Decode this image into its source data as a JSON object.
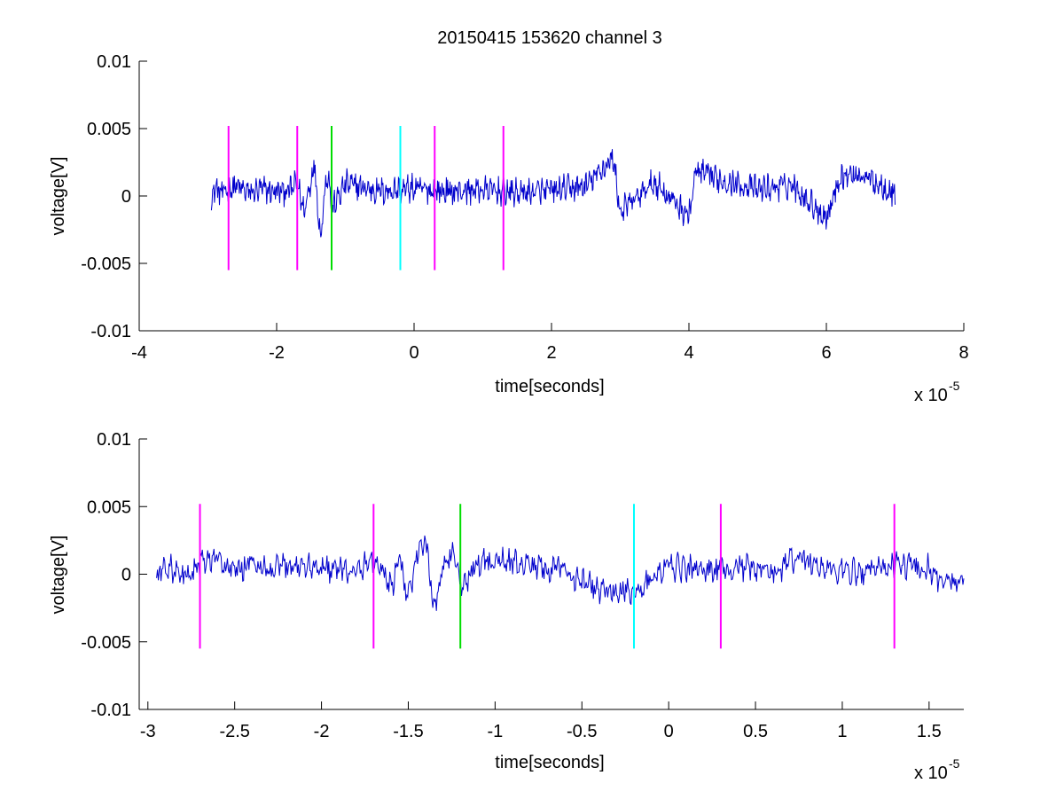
{
  "chart_data": [
    {
      "type": "line",
      "title": "20150415 153620 channel 3",
      "xlabel": "time[seconds]",
      "ylabel": "voltage[V]",
      "x_multiplier_label": "x 10",
      "x_multiplier_exponent": "-5",
      "xlim": [
        -4,
        8
      ],
      "ylim": [
        -0.01,
        0.01
      ],
      "xticks": [
        "-4",
        "-2",
        "0",
        "2",
        "4",
        "6",
        "8"
      ],
      "yticks": [
        "-0.01",
        "-0.005",
        "0",
        "0.005",
        "0.01"
      ],
      "xtick_values": [
        -4,
        -2,
        0,
        2,
        4,
        6,
        8
      ],
      "ytick_values": [
        -0.01,
        -0.005,
        0,
        0.005,
        0.01
      ],
      "grid": false,
      "series": [
        {
          "color": "#0000cc",
          "x_range": [
            -2.95,
            7.0
          ],
          "x_units": "x 10^-5 seconds",
          "y_units": "V",
          "approx_points": [
            [
              -2.95,
              -0.0005
            ],
            [
              -2.9,
              0.001
            ],
            [
              -2.8,
              0.0003
            ],
            [
              -2.6,
              0.0012
            ],
            [
              -2.4,
              0.0004
            ],
            [
              -2.2,
              0.0008
            ],
            [
              -2.0,
              0.0005
            ],
            [
              -1.8,
              0.0007
            ],
            [
              -1.7,
              0.0016
            ],
            [
              -1.6,
              -0.002
            ],
            [
              -1.5,
              0.002
            ],
            [
              -1.45,
              0.0043
            ],
            [
              -1.4,
              -0.0015
            ],
            [
              -1.35,
              -0.005
            ],
            [
              -1.3,
              0.0013
            ],
            [
              -1.25,
              0.003
            ],
            [
              -1.2,
              -0.0017
            ],
            [
              -1.0,
              0.0015
            ],
            [
              -0.5,
              0.0006
            ],
            [
              0.0,
              0.0009
            ],
            [
              0.5,
              0.0005
            ],
            [
              1.0,
              0.0008
            ],
            [
              1.5,
              0.0004
            ],
            [
              2.0,
              0.0006
            ],
            [
              2.5,
              0.0012
            ],
            [
              2.9,
              0.0047
            ],
            [
              3.0,
              -0.002
            ],
            [
              3.5,
              0.0017
            ],
            [
              4.0,
              -0.0025
            ],
            [
              4.1,
              0.003
            ],
            [
              4.5,
              0.0019
            ],
            [
              5.0,
              0.0008
            ],
            [
              5.5,
              0.0014
            ],
            [
              6.0,
              -0.0027
            ],
            [
              6.2,
              0.0024
            ],
            [
              6.5,
              0.0027
            ],
            [
              6.8,
              0.0013
            ],
            [
              7.0,
              0.0003
            ]
          ]
        }
      ],
      "markers": [
        {
          "x": -2.7,
          "color": "#ff00ff"
        },
        {
          "x": -1.7,
          "color": "#ff00ff"
        },
        {
          "x": -1.2,
          "color": "#00dd00"
        },
        {
          "x": -0.2,
          "color": "#00ffff"
        },
        {
          "x": 0.3,
          "color": "#ff00ff"
        },
        {
          "x": 1.3,
          "color": "#ff00ff"
        }
      ],
      "marker_y_range": [
        -0.0055,
        0.0052
      ]
    },
    {
      "type": "line",
      "title": "",
      "xlabel": "time[seconds]",
      "ylabel": "voltage[V]",
      "x_multiplier_label": "x 10",
      "x_multiplier_exponent": "-5",
      "xlim": [
        -3.05,
        1.7
      ],
      "ylim": [
        -0.01,
        0.01
      ],
      "xticks": [
        "-3",
        "-2.5",
        "-2",
        "-1.5",
        "-1",
        "-0.5",
        "0",
        "0.5",
        "1",
        "1.5"
      ],
      "yticks": [
        "-0.01",
        "-0.005",
        "0",
        "0.005",
        "0.01"
      ],
      "xtick_values": [
        -3,
        -2.5,
        -2,
        -1.5,
        -1,
        -0.5,
        0,
        0.5,
        1,
        1.5
      ],
      "ytick_values": [
        -0.01,
        -0.005,
        0,
        0.005,
        0.01
      ],
      "grid": false,
      "series": [
        {
          "color": "#0000cc",
          "x_range": [
            -2.95,
            1.7
          ],
          "x_units": "x 10^-5 seconds",
          "y_units": "V",
          "approx_points": [
            [
              -2.95,
              -0.0005
            ],
            [
              -2.9,
              0.0012
            ],
            [
              -2.8,
              -0.0007
            ],
            [
              -2.7,
              0.0013
            ],
            [
              -2.6,
              0.0018
            ],
            [
              -2.5,
              0.0002
            ],
            [
              -2.4,
              0.0015
            ],
            [
              -2.3,
              0.0
            ],
            [
              -2.2,
              0.0012
            ],
            [
              -2.0,
              0.0008
            ],
            [
              -1.8,
              0.0
            ],
            [
              -1.72,
              0.0017
            ],
            [
              -1.65,
              0.0008
            ],
            [
              -1.6,
              -0.002
            ],
            [
              -1.55,
              0.0018
            ],
            [
              -1.5,
              -0.003
            ],
            [
              -1.45,
              0.0022
            ],
            [
              -1.4,
              0.0043
            ],
            [
              -1.35,
              -0.0049
            ],
            [
              -1.3,
              0.0011
            ],
            [
              -1.25,
              0.003
            ],
            [
              -1.2,
              -0.0017
            ],
            [
              -1.1,
              0.0013
            ],
            [
              -1.0,
              0.0017
            ],
            [
              -0.8,
              0.0012
            ],
            [
              -0.6,
              0.0004
            ],
            [
              -0.4,
              -0.002
            ],
            [
              -0.2,
              -0.0023
            ],
            [
              0.0,
              0.0009
            ],
            [
              0.2,
              0.0005
            ],
            [
              0.4,
              0.0008
            ],
            [
              0.6,
              0.0002
            ],
            [
              0.75,
              0.0022
            ],
            [
              0.9,
              0.0006
            ],
            [
              1.1,
              0.0003
            ],
            [
              1.3,
              0.0012
            ],
            [
              1.5,
              0.0008
            ],
            [
              1.6,
              -0.0013
            ],
            [
              1.7,
              -0.0002
            ]
          ]
        }
      ],
      "markers": [
        {
          "x": -2.7,
          "color": "#ff00ff"
        },
        {
          "x": -1.7,
          "color": "#ff00ff"
        },
        {
          "x": -1.2,
          "color": "#00dd00"
        },
        {
          "x": -0.2,
          "color": "#00ffff"
        },
        {
          "x": 0.3,
          "color": "#ff00ff"
        },
        {
          "x": 1.3,
          "color": "#ff00ff"
        }
      ],
      "marker_y_range": [
        -0.0055,
        0.0052
      ]
    }
  ]
}
